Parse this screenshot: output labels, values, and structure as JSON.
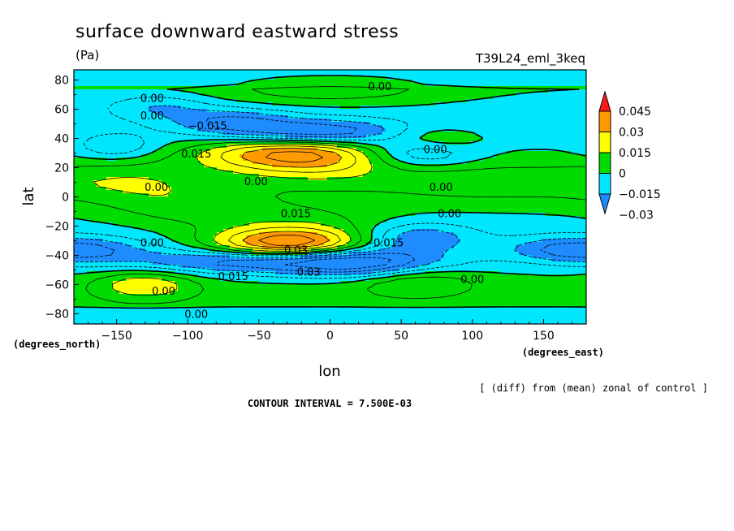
{
  "chart_data": {
    "type": "heatmap",
    "title": "surface downward eastward stress",
    "units": "(Pa)",
    "run_label": "T39L24_eml_3keq",
    "xlabel": "lon",
    "ylabel": "lat",
    "x_units_label": "(degrees_east)",
    "y_units_label": "(degrees_north)",
    "xlim": [
      -180,
      180
    ],
    "ylim": [
      -87,
      87
    ],
    "x_ticks": [
      -150,
      -100,
      -50,
      0,
      50,
      100,
      150
    ],
    "y_ticks": [
      -80,
      -60,
      -40,
      -20,
      0,
      20,
      40,
      60,
      80
    ],
    "x_tick_labels": [
      "−150",
      "−100",
      "−50",
      "0",
      "50",
      "100",
      "150"
    ],
    "y_tick_labels": [
      "−80",
      "−60",
      "−40",
      "−20",
      "0",
      "20",
      "40",
      "60",
      "80"
    ],
    "contour_interval": 0.0075,
    "colorbar": {
      "levels": [
        -0.03,
        -0.015,
        0,
        0.015,
        0.03,
        0.045
      ],
      "labels": [
        "−0.03",
        "−0.015",
        "0",
        "0.015",
        "0.03",
        "0.045"
      ],
      "colors": [
        "#1e8cff",
        "#00e6ff",
        "#00dc00",
        "#ffff00",
        "#ff9a00",
        "#ff1a1a"
      ],
      "extend": "both"
    },
    "features": [
      {
        "lon": -30,
        "lat": 30,
        "value": 0.034
      },
      {
        "lon": -30,
        "lat": -32,
        "value": 0.045
      },
      {
        "lon": -10,
        "lat": 44,
        "value": -0.03
      },
      {
        "lon": -40,
        "lat": -44,
        "value": -0.03
      },
      {
        "lon": 55,
        "lat": 30,
        "value": -0.02
      },
      {
        "lon": 60,
        "lat": -28,
        "value": -0.02
      }
    ],
    "contour_labels": [
      {
        "text": "0.00",
        "lon": 35,
        "lat": 75
      },
      {
        "text": "0.00",
        "lon": -125,
        "lat": 67
      },
      {
        "text": "0.00",
        "lon": -125,
        "lat": 55
      },
      {
        "text": "−0.015",
        "lon": -86,
        "lat": 48
      },
      {
        "text": "0.015",
        "lon": -94,
        "lat": 29
      },
      {
        "text": "0.00",
        "lon": 74,
        "lat": 32
      },
      {
        "text": "0.00",
        "lon": -52,
        "lat": 10
      },
      {
        "text": "0.00",
        "lon": -122,
        "lat": 6
      },
      {
        "text": "0.00",
        "lon": 78,
        "lat": 6
      },
      {
        "text": "0.015",
        "lon": -24,
        "lat": -12
      },
      {
        "text": "0.00",
        "lon": 84,
        "lat": -12
      },
      {
        "text": "0.00",
        "lon": -125,
        "lat": -32
      },
      {
        "text": "−0.015",
        "lon": 38,
        "lat": -32
      },
      {
        "text": "0.03",
        "lon": -24,
        "lat": -37
      },
      {
        "text": "0.03",
        "lon": -15,
        "lat": -52
      },
      {
        "text": "0.015",
        "lon": -68,
        "lat": -55
      },
      {
        "text": "0.00",
        "lon": -117,
        "lat": -65
      },
      {
        "text": "0.00",
        "lon": -94,
        "lat": -81
      },
      {
        "text": "0.00",
        "lon": 100,
        "lat": -57
      }
    ]
  },
  "footer": {
    "note": "[ (diff) from (mean) zonal of control ]",
    "contour_interval_text": "CONTOUR INTERVAL = 7.500E-03"
  }
}
